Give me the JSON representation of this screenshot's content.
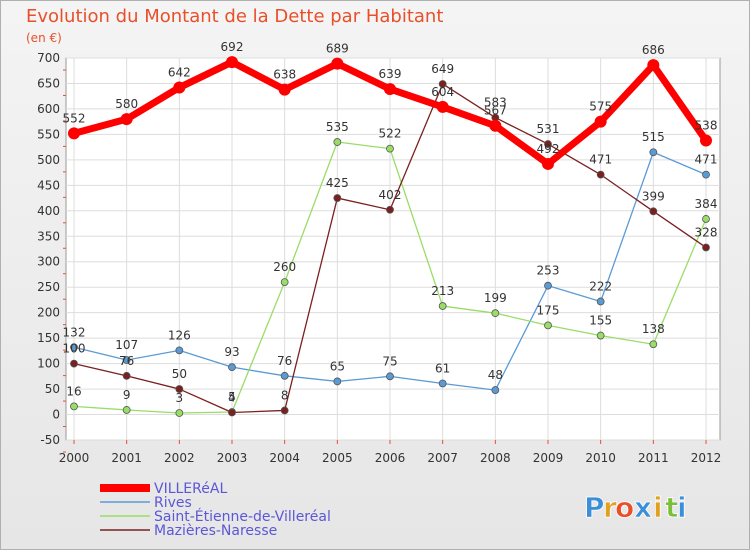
{
  "chart_data": {
    "type": "line",
    "title": "Evolution du Montant de la Dette par Habitant",
    "unit_label": "(en €)",
    "x": [
      "2000",
      "2001",
      "2002",
      "2003",
      "2004",
      "2005",
      "2006",
      "2007",
      "2008",
      "2009",
      "2010",
      "2011",
      "2012"
    ],
    "ylim": [
      -50,
      700
    ],
    "yticks": [
      -50,
      0,
      50,
      100,
      150,
      200,
      250,
      300,
      350,
      400,
      450,
      500,
      550,
      600,
      650,
      700
    ],
    "grid": true,
    "legend_position": "bottom-left",
    "series": [
      {
        "name": "VILLERéAL",
        "color": "#ff0000",
        "values": [
          552,
          580,
          642,
          692,
          638,
          689,
          639,
          604,
          567,
          492,
          575,
          686,
          538
        ]
      },
      {
        "name": "Rives",
        "color": "#5b9bd5",
        "values": [
          132,
          107,
          126,
          93,
          76,
          65,
          75,
          61,
          48,
          253,
          222,
          515,
          471
        ]
      },
      {
        "name": "Saint-Étienne-de-Villeréal",
        "color": "#99dd66",
        "values": [
          16,
          9,
          3,
          5,
          260,
          535,
          522,
          213,
          199,
          175,
          155,
          138,
          384
        ]
      },
      {
        "name": "Mazières-Naresse",
        "color": "#7a2020",
        "values": [
          100,
          76,
          50,
          4,
          8,
          425,
          402,
          649,
          583,
          531,
          471,
          399,
          328
        ]
      }
    ]
  },
  "brand": {
    "letters": [
      "P",
      "r",
      "o",
      "x",
      "i",
      "t",
      "i"
    ],
    "colors": [
      "#3a8fd8",
      "#e0a020",
      "#e8502a",
      "#3a8fd8",
      "#e0a020",
      "#7bbf3a",
      "#3a8fd8"
    ]
  }
}
